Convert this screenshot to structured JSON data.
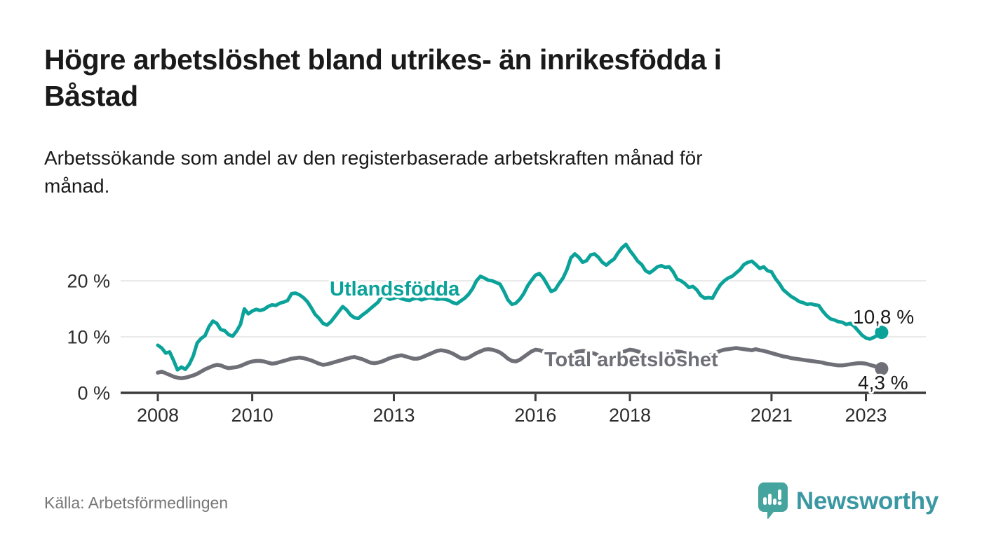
{
  "header": {
    "title": "Högre arbetslöshet bland utrikes- än inrikesfödda i Båstad",
    "title_lines": [
      "Högre arbetslöshet bland utrikes- än inrikesfödda i",
      "Båstad"
    ],
    "subtitle": "Arbetssökande som andel av den registerbaserade arbetskraften månad för månad.",
    "subtitle_lines": [
      "Arbetssökande som andel av den registerbaserade arbetskraften månad för",
      "månad."
    ]
  },
  "footer": {
    "source": "Källa: Arbetsförmedlingen",
    "brand": "Newsworthy",
    "brand_icon": "newsworthy-speech-bubble-bar-chart-icon"
  },
  "colors": {
    "foreign_born_line": "#0ba29a",
    "total_line": "#6f6f78",
    "grid": "#e3e3e3",
    "axis": "#3c3c3c",
    "tick_text": "#2d2d2d",
    "heading_text": "#1a1a1a",
    "muted_text": "#767676",
    "brand_teal": "#3b98a2",
    "brand_icon_teal": "#46a49e"
  },
  "chart_data": {
    "type": "line",
    "title": "Högre arbetslöshet bland utrikes- än inrikesfödda i Båstad",
    "subtitle": "Arbetssökande som andel av den registerbaserade arbetskraften månad för månad.",
    "unit": "percent",
    "frequency": "monthly",
    "start_period": "2008-01",
    "end_period": "2023-05",
    "grid": "horizontal",
    "legend_position": "inline-labels",
    "x_tick_years": [
      2008,
      2010,
      2013,
      2016,
      2018,
      2021,
      2023
    ],
    "x_tick_labels": [
      "2008",
      "2010",
      "2013",
      "2016",
      "2018",
      "2021",
      "2023"
    ],
    "y_ticks": [
      0,
      10,
      20
    ],
    "y_tick_labels": [
      "0 %",
      "10 %",
      "20 %"
    ],
    "ylim": [
      0,
      28
    ],
    "xlim_years": [
      2007.2,
      2024.3
    ],
    "series": [
      {
        "name": "Utlandsfödda",
        "color": "#0ba29a",
        "end_value": 10.8,
        "end_label": "10,8 %",
        "start_year": 2008,
        "monthly_values": [
          8.5,
          8.0,
          7.1,
          7.3,
          5.8,
          4.1,
          4.6,
          4.2,
          5.1,
          6.6,
          8.9,
          9.7,
          10.2,
          11.8,
          12.8,
          12.4,
          11.3,
          11.1,
          10.4,
          10.1,
          11.0,
          12.2,
          15.0,
          14.1,
          14.6,
          14.9,
          14.7,
          14.9,
          15.4,
          15.7,
          15.6,
          16.0,
          16.2,
          16.5,
          17.7,
          17.8,
          17.5,
          17.0,
          16.3,
          15.2,
          14.0,
          13.3,
          12.4,
          12.1,
          12.7,
          13.6,
          14.5,
          15.4,
          14.8,
          13.9,
          13.4,
          13.3,
          13.9,
          14.4,
          15.0,
          15.6,
          16.2,
          17.3,
          17.1,
          16.7,
          16.9,
          17.1,
          16.8,
          16.6,
          16.5,
          16.8,
          16.9,
          16.6,
          16.8,
          17.0,
          16.9,
          16.7,
          16.8,
          16.7,
          16.5,
          16.1,
          15.9,
          16.4,
          16.9,
          17.6,
          18.6,
          20.0,
          20.8,
          20.5,
          20.1,
          20.0,
          19.7,
          19.4,
          18.1,
          16.6,
          15.8,
          16.0,
          16.7,
          17.7,
          19.1,
          20.1,
          21.0,
          21.3,
          20.5,
          19.3,
          18.1,
          18.4,
          19.5,
          20.5,
          22.0,
          24.1,
          24.8,
          24.2,
          23.3,
          23.6,
          24.6,
          24.8,
          24.2,
          23.3,
          22.8,
          23.4,
          23.9,
          25.0,
          25.9,
          26.5,
          25.4,
          24.5,
          23.5,
          22.9,
          21.8,
          21.4,
          21.9,
          22.5,
          22.7,
          22.4,
          22.5,
          21.6,
          20.3,
          20.0,
          19.5,
          18.8,
          19.0,
          18.4,
          17.4,
          16.9,
          17.0,
          16.9,
          18.2,
          19.3,
          20.0,
          20.5,
          20.8,
          21.4,
          22.0,
          22.9,
          23.3,
          23.5,
          22.9,
          22.2,
          22.5,
          21.8,
          21.6,
          20.4,
          19.5,
          18.4,
          17.8,
          17.2,
          16.8,
          16.3,
          16.1,
          15.8,
          15.9,
          15.7,
          15.6,
          14.6,
          13.8,
          13.2,
          13.0,
          12.7,
          12.6,
          12.2,
          12.4,
          11.9,
          11.1,
          10.3,
          9.8,
          9.6,
          9.9,
          10.3,
          10.8
        ]
      },
      {
        "name": "Total arbetslöshet",
        "color": "#6f6f78",
        "end_value": 4.3,
        "end_label": "4,3 %",
        "start_year": 2008,
        "monthly_values": [
          3.6,
          3.8,
          3.5,
          3.2,
          2.9,
          2.7,
          2.6,
          2.7,
          2.9,
          3.1,
          3.4,
          3.8,
          4.2,
          4.5,
          4.8,
          5.0,
          4.9,
          4.6,
          4.4,
          4.5,
          4.6,
          4.8,
          5.1,
          5.4,
          5.6,
          5.7,
          5.7,
          5.6,
          5.4,
          5.2,
          5.3,
          5.5,
          5.7,
          5.9,
          6.1,
          6.2,
          6.3,
          6.2,
          6.0,
          5.8,
          5.5,
          5.2,
          5.0,
          5.1,
          5.3,
          5.5,
          5.7,
          5.9,
          6.1,
          6.3,
          6.4,
          6.2,
          6.0,
          5.7,
          5.4,
          5.3,
          5.4,
          5.6,
          5.9,
          6.2,
          6.4,
          6.6,
          6.7,
          6.5,
          6.3,
          6.1,
          6.1,
          6.3,
          6.6,
          6.9,
          7.2,
          7.5,
          7.6,
          7.5,
          7.3,
          7.0,
          6.6,
          6.2,
          6.1,
          6.3,
          6.7,
          7.1,
          7.4,
          7.7,
          7.8,
          7.7,
          7.5,
          7.2,
          6.7,
          6.1,
          5.7,
          5.6,
          5.9,
          6.4,
          6.9,
          7.4,
          7.7,
          7.6,
          7.4,
          7.1,
          6.8,
          6.5,
          6.3,
          6.4,
          6.6,
          6.9,
          7.2,
          7.4,
          7.5,
          7.4,
          7.2,
          7.0,
          6.7,
          6.4,
          6.3,
          6.4,
          6.6,
          6.9,
          7.2,
          7.5,
          7.7,
          7.6,
          7.4,
          7.1,
          6.8,
          6.5,
          6.4,
          6.5,
          6.7,
          6.9,
          7.1,
          7.3,
          7.4,
          7.3,
          7.1,
          6.9,
          6.7,
          6.4,
          6.3,
          6.4,
          6.6,
          6.9,
          7.2,
          7.5,
          7.7,
          7.8,
          7.9,
          8.0,
          7.9,
          7.8,
          7.7,
          7.6,
          7.8,
          7.6,
          7.5,
          7.3,
          7.1,
          6.9,
          6.7,
          6.5,
          6.4,
          6.2,
          6.1,
          6.0,
          5.9,
          5.8,
          5.7,
          5.6,
          5.5,
          5.4,
          5.2,
          5.1,
          5.0,
          4.9,
          4.9,
          5.0,
          5.1,
          5.2,
          5.3,
          5.3,
          5.2,
          5.0,
          4.8,
          4.6,
          4.3
        ]
      }
    ]
  }
}
